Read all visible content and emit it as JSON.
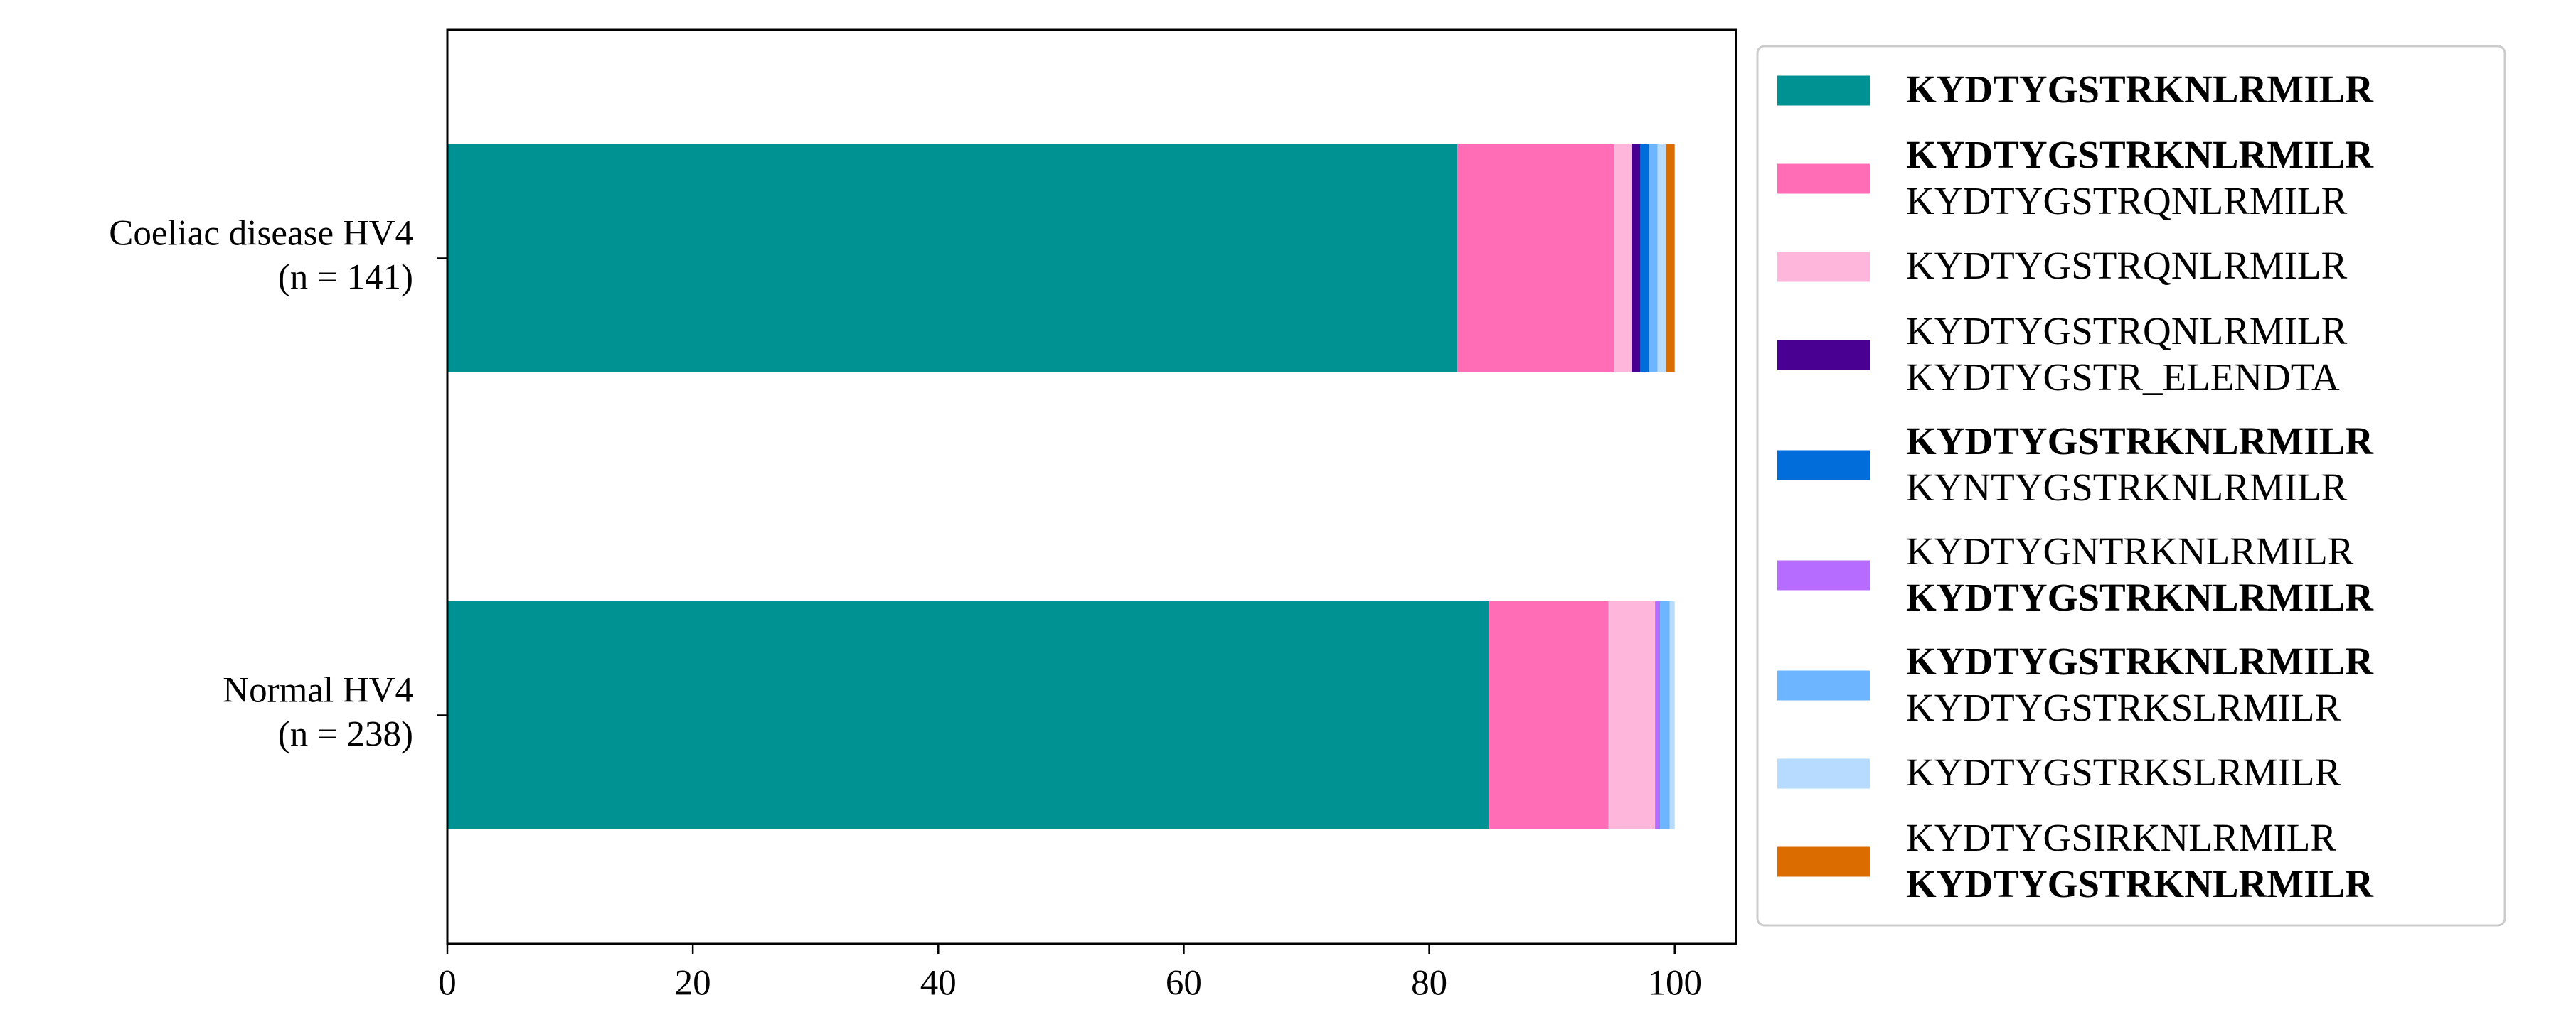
{
  "chart_data": {
    "type": "stacked_barh",
    "categories": [
      "Coeliac disease HV4\n(n = 141)",
      "Normal HV4\n(n = 238)"
    ],
    "series": [
      {
        "name": "KYDTYGSTRKNLRMILR",
        "bold_lines": [
          true
        ],
        "color": "#009292",
        "values": [
          82.3,
          84.9
        ]
      },
      {
        "name": "KYDTYGSTRKNLRMILR\nKYDTYGSTRQNLRMILR",
        "bold_lines": [
          true,
          false
        ],
        "color": "#ff6db6",
        "values": [
          12.8,
          9.7
        ]
      },
      {
        "name": "KYDTYGSTRQNLRMILR",
        "bold_lines": [
          false
        ],
        "color": "#ffb6db",
        "values": [
          1.4,
          3.8
        ]
      },
      {
        "name": "KYDTYGSTRQNLRMILR\nKYDTYGSTR_ELENDTA",
        "bold_lines": [
          false,
          false
        ],
        "color": "#490092",
        "values": [
          0.7,
          0
        ]
      },
      {
        "name": "KYDTYGSTRKNLRMILR\nKYNTYGSTRKNLRMILR",
        "bold_lines": [
          true,
          false
        ],
        "color": "#006ddb",
        "values": [
          0.7,
          0
        ]
      },
      {
        "name": "KYDTYGNTRKNLRMILR\nKYDTYGSTRKNLRMILR",
        "bold_lines": [
          false,
          true
        ],
        "color": "#b66dff",
        "values": [
          0,
          0.4
        ]
      },
      {
        "name": "KYDTYGSTRKNLRMILR\nKYDTYGSTRKSLRMILR",
        "bold_lines": [
          true,
          false
        ],
        "color": "#6db6ff",
        "values": [
          0.7,
          0.8
        ]
      },
      {
        "name": "KYDTYGSTRKSLRMILR",
        "bold_lines": [
          false
        ],
        "color": "#b6dbff",
        "values": [
          0.7,
          0.4
        ]
      },
      {
        "name": "KYDTYGSIRKNLRMILR\nKYDTYGSTRKNLRMILR",
        "bold_lines": [
          false,
          true
        ],
        "color": "#db6d00",
        "values": [
          0.7,
          0
        ]
      }
    ],
    "xlim": [
      0,
      105
    ],
    "xticks": [
      0,
      20,
      40,
      60,
      80,
      100
    ],
    "legend": "outside right"
  }
}
